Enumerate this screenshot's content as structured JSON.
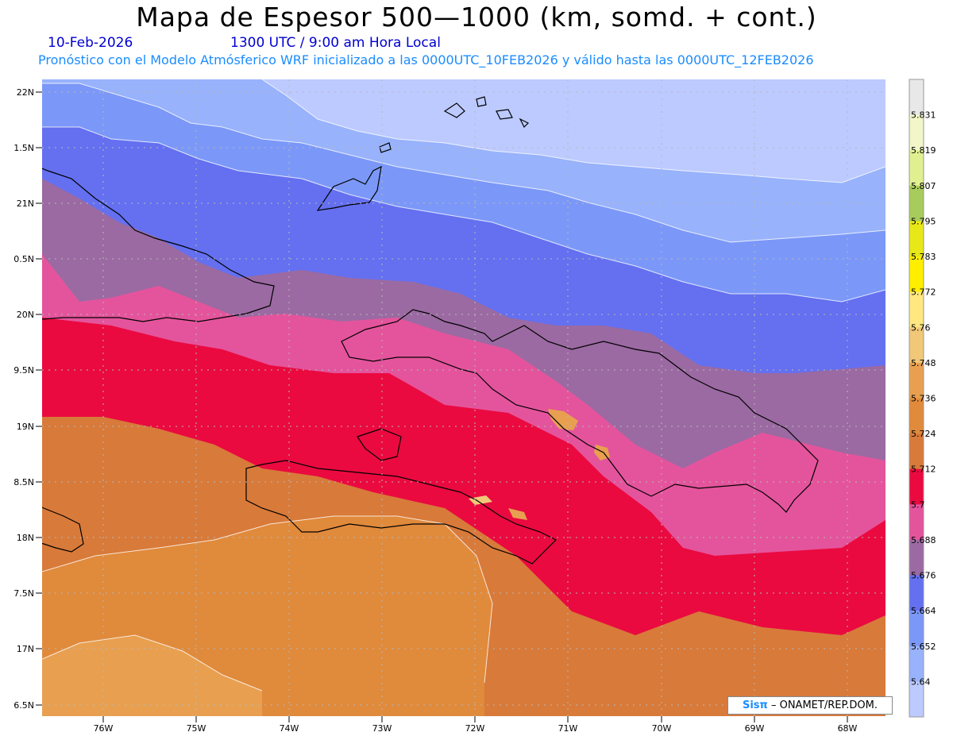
{
  "header": {
    "title": "Mapa de Espesor 500—1000 (km, somd. + cont.)",
    "date": "10-Feb-2026",
    "time": "1300 UTC / 9:00 am Hora Local",
    "forecast": "Pronóstico con el Modelo Atmósferico WRF inicializado a las 0000UTC_10FEB2026 y válido hasta las  0000UTC_12FEB2026"
  },
  "map": {
    "lat_labels": [
      "22N",
      "1.5N",
      "21N",
      "0.5N",
      "20N",
      "9.5N",
      "19N",
      "8.5N",
      "18N",
      "7.5N",
      "17N",
      "6.5N"
    ],
    "lon_labels": [
      "76W",
      "75W",
      "74W",
      "73W",
      "72W",
      "71W",
      "70W",
      "69W",
      "68W"
    ]
  },
  "colorbar": {
    "labels": [
      "5.831",
      "5.819",
      "5.807",
      "5.795",
      "5.783",
      "5.772",
      "5.76",
      "5.748",
      "5.736",
      "5.724",
      "5.712",
      "5.7",
      "5.688",
      "5.676",
      "5.664",
      "5.652",
      "5.64"
    ],
    "colors": [
      "#e8e8e8",
      "#f2f6c8",
      "#e0f090",
      "#a8cc5c",
      "#e8e818",
      "#ffee00",
      "#ffe880",
      "#f0c878",
      "#e8a050",
      "#e08a3c",
      "#d87a3a",
      "#ea0a40",
      "#e4549c",
      "#9b6aa2",
      "#6470f0",
      "#7b98f8",
      "#98b2fc",
      "#bccaff"
    ]
  },
  "credit": {
    "logo": "Sisπ",
    "text": "– ONAMET/REP.DOM."
  }
}
